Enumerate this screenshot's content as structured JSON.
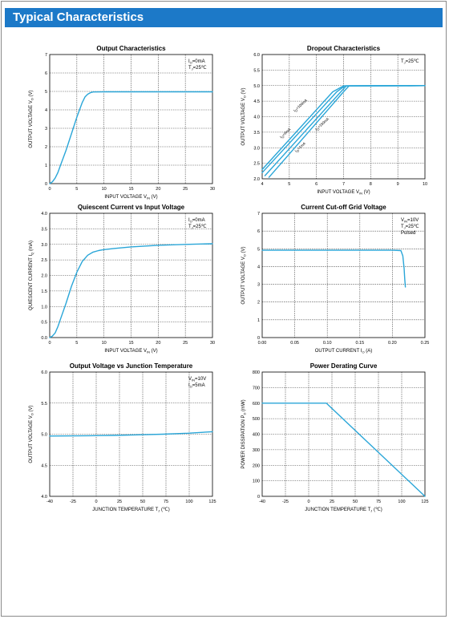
{
  "header": {
    "title": "Typical Characteristics"
  },
  "colors": {
    "banner": "#1c79c8",
    "curve": "#2aa6d8",
    "grid": "#444444"
  },
  "chart_data": [
    {
      "type": "line",
      "title": "Output  Characteristics",
      "xlabel": "INPUT VOLTAGE",
      "xsym": "V",
      "xsub": "IN",
      "xunit": "(V)",
      "ylabel": "OUTPUT VOLTAGE",
      "ysym": "V",
      "ysub": "O",
      "yunit": "(V)",
      "xlim": [
        0,
        30
      ],
      "ylim": [
        0,
        7
      ],
      "xticks": [
        "0",
        "5",
        "10",
        "15",
        "20",
        "25",
        "30"
      ],
      "yticks": [
        "0",
        "1",
        "2",
        "3",
        "4",
        "5",
        "6",
        "7"
      ],
      "legend": [
        {
          "sym": "I",
          "sub": "O",
          "text": "=0mA"
        },
        {
          "sym": "T",
          "sub": "J",
          "text": "=25℃"
        }
      ],
      "series": [
        {
          "x": [
            0,
            0.5,
            1,
            1.5,
            2,
            3,
            4,
            5,
            6,
            6.5,
            7,
            7.5,
            8,
            10,
            15,
            20,
            25,
            30
          ],
          "y": [
            0,
            0.1,
            0.3,
            0.6,
            1.0,
            1.8,
            2.7,
            3.6,
            4.4,
            4.7,
            4.85,
            4.93,
            4.97,
            4.98,
            4.98,
            4.98,
            4.98,
            4.98
          ]
        }
      ],
      "labels": []
    },
    {
      "type": "line",
      "title": "Dropout Characteristics",
      "xlabel": "INPUT VOLTAGE",
      "xsym": "V",
      "xsub": "IN",
      "xunit": "(V)",
      "ylabel": "OUTPUT VOLTAGE",
      "ysym": "V",
      "ysub": "O",
      "yunit": "(V)",
      "xlim": [
        4,
        10
      ],
      "ylim": [
        2.0,
        6.0
      ],
      "xticks": [
        "4",
        "5",
        "6",
        "7",
        "8",
        "9",
        "10"
      ],
      "yticks": [
        "2.0",
        "2.5",
        "3.0",
        "3.5",
        "4.0",
        "4.5",
        "5.0",
        "5.5",
        "6.0"
      ],
      "legend": [
        {
          "sym": "T",
          "sub": "J",
          "text": "=25℃"
        }
      ],
      "series": [
        {
          "name": "Io=0mA",
          "x": [
            4,
            6.6,
            7.0,
            10
          ],
          "y": [
            2.3,
            4.8,
            4.99,
            5.0
          ]
        },
        {
          "name": "Io=1mA",
          "x": [
            4,
            6.75,
            7.05,
            10
          ],
          "y": [
            2.2,
            4.8,
            4.99,
            5.0
          ]
        },
        {
          "name": "Io=100mA",
          "x": [
            4.1,
            6.9,
            7.1,
            10
          ],
          "y": [
            2.1,
            4.8,
            4.99,
            5.0
          ]
        },
        {
          "name": "Io=150mA",
          "x": [
            4.25,
            7.0,
            7.2,
            10
          ],
          "y": [
            2.05,
            4.8,
            4.99,
            5.0
          ]
        }
      ],
      "labels": [
        {
          "sym": "I",
          "sub": "O",
          "text": "=0mA",
          "x": 4.7,
          "y": 3.3,
          "rot": -42
        },
        {
          "sym": "I",
          "sub": "O",
          "text": "=1mA",
          "x": 5.25,
          "y": 2.85,
          "rot": -42
        },
        {
          "sym": "I",
          "sub": "O",
          "text": "=100mA",
          "x": 5.2,
          "y": 4.15,
          "rot": -42
        },
        {
          "sym": "I",
          "sub": "O",
          "text": "=150mA",
          "x": 6.0,
          "y": 3.55,
          "rot": -42
        }
      ]
    },
    {
      "type": "line",
      "title": "Quiescent Current vs Input Voltage",
      "xlabel": "INPUT VOLTAGE",
      "xsym": "V",
      "xsub": "IN",
      "xunit": "(V)",
      "ylabel": "QUIESCENT  CURRENT",
      "ysym": "I",
      "ysub": "Q",
      "yunit": "(mA)",
      "xlim": [
        0,
        30
      ],
      "ylim": [
        0,
        4.0
      ],
      "xticks": [
        "0",
        "5",
        "10",
        "15",
        "20",
        "25",
        "30"
      ],
      "yticks": [
        "0.0",
        "0.5",
        "1.0",
        "1.5",
        "2.0",
        "2.5",
        "3.0",
        "3.5",
        "4.0"
      ],
      "legend": [
        {
          "sym": "I",
          "sub": "O",
          "text": "=0mA"
        },
        {
          "sym": "T",
          "sub": "J",
          "text": "=25℃"
        }
      ],
      "series": [
        {
          "x": [
            0,
            0.5,
            1,
            1.5,
            2,
            3,
            4,
            5,
            6,
            7,
            8,
            9,
            10,
            12,
            15,
            20,
            25,
            30
          ],
          "y": [
            0,
            0.05,
            0.15,
            0.35,
            0.6,
            1.1,
            1.65,
            2.1,
            2.45,
            2.65,
            2.75,
            2.8,
            2.83,
            2.87,
            2.92,
            2.97,
            3.0,
            3.02
          ]
        }
      ],
      "labels": []
    },
    {
      "type": "line",
      "title": "Current  Cut-off Grid Voltage",
      "xlabel": "OUTPUT CURRENT",
      "xsym": "I",
      "xsub": "O",
      "xunit": "(A)",
      "ylabel": "OUTPUT VOLTAGE",
      "ysym": "V",
      "ysub": "O",
      "yunit": "(V)",
      "xlim": [
        0,
        0.25
      ],
      "ylim": [
        0,
        7
      ],
      "xticks": [
        "0.00",
        "0.05",
        "0.10",
        "0.15",
        "0.20",
        "0.25"
      ],
      "yticks": [
        "0",
        "1",
        "2",
        "3",
        "4",
        "5",
        "6",
        "7"
      ],
      "legend": [
        {
          "sym": "V",
          "sub": "IN",
          "text": "=10V"
        },
        {
          "sym": "T",
          "sub": "J",
          "text": "=25℃"
        },
        {
          "sym": "",
          "sub": "",
          "text": "Pulsed"
        }
      ],
      "series": [
        {
          "x": [
            0,
            0.05,
            0.1,
            0.15,
            0.2,
            0.213,
            0.216,
            0.218,
            0.219,
            0.22
          ],
          "y": [
            4.92,
            4.92,
            4.92,
            4.92,
            4.92,
            4.9,
            4.6,
            3.9,
            3.3,
            2.85
          ]
        }
      ],
      "labels": []
    },
    {
      "type": "line",
      "title": "Output Voltage vs Junction Temperature",
      "xlabel": "JUNCTION TEMPERATURE",
      "xsym": "T",
      "xsub": "J",
      "xunit": "(℃)",
      "ylabel": "OUTPUT VOLTAGE",
      "ysym": "V",
      "ysub": "O",
      "yunit": "(V)",
      "xlim": [
        -40,
        125
      ],
      "ylim": [
        4.0,
        6.0
      ],
      "xticks": [
        "-40",
        "-25",
        "0",
        "25",
        "50",
        "75",
        "100",
        "125"
      ],
      "yticks": [
        "4.0",
        "4.5",
        "5.0",
        "5.5",
        "6.0"
      ],
      "legend": [
        {
          "sym": "V",
          "sub": "IN",
          "text": "=10V"
        },
        {
          "sym": "I",
          "sub": "O",
          "text": "=5mA"
        }
      ],
      "series": [
        {
          "x": [
            -40,
            0,
            25,
            50,
            75,
            100,
            125
          ],
          "y": [
            4.97,
            4.975,
            4.98,
            4.99,
            5.0,
            5.015,
            5.04
          ]
        }
      ],
      "labels": []
    },
    {
      "type": "line",
      "title": "Power Derating Curve",
      "xlabel": "JUNCTION TEMPERATURE",
      "xsym": "T",
      "xsub": "J",
      "xunit": "(℃)",
      "ylabel": "POWER DISSIPATION",
      "ysym": "P",
      "ysub": "D",
      "yunit": "(mW)",
      "xlim": [
        -40,
        125
      ],
      "ylim": [
        0,
        800
      ],
      "xticks": [
        "-40",
        "-25",
        "0",
        "25",
        "50",
        "75",
        "100",
        "125"
      ],
      "yticks": [
        "0",
        "100",
        "200",
        "300",
        "400",
        "500",
        "600",
        "700",
        "800"
      ],
      "legend": [],
      "series": [
        {
          "x": [
            -40,
            25,
            125
          ],
          "y": [
            600,
            600,
            0
          ]
        }
      ],
      "labels": []
    }
  ]
}
